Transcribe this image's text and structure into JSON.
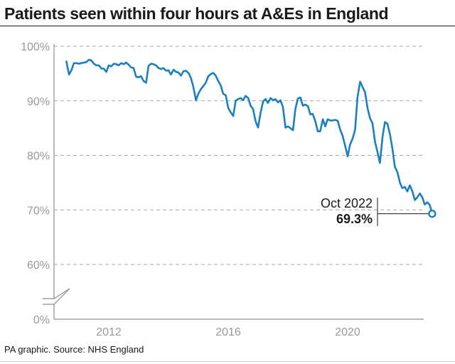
{
  "chart_data": {
    "type": "line",
    "title": "Patients seen within four hours at A&Es in England",
    "xlabel": "",
    "ylabel": "",
    "ylim": [
      60,
      100
    ],
    "y_ticks": [
      "100%",
      "90%",
      "80%",
      "70%",
      "60%",
      "0%"
    ],
    "y_tick_values": [
      100,
      90,
      80,
      70,
      60,
      0
    ],
    "y_axis_break": true,
    "x_ticks": [
      "2012",
      "2016",
      "2020"
    ],
    "x_tick_values": [
      2012,
      2016,
      2020
    ],
    "xlim": [
      2010.5,
      2022.9
    ],
    "grid": "horizontal dashed",
    "color": "#1b7fc0",
    "series": [
      {
        "values": [
          [
            2010.58,
            97.2
          ],
          [
            2010.67,
            94.8
          ],
          [
            2010.75,
            95.6
          ],
          [
            2010.83,
            96.9
          ],
          [
            2010.92,
            96.9
          ],
          [
            2011.0,
            96.8
          ],
          [
            2011.08,
            96.9
          ],
          [
            2011.17,
            97.0
          ],
          [
            2011.25,
            97.1
          ],
          [
            2011.33,
            97.5
          ],
          [
            2011.42,
            97.4
          ],
          [
            2011.5,
            96.8
          ],
          [
            2011.58,
            96.5
          ],
          [
            2011.67,
            96.5
          ],
          [
            2011.75,
            95.9
          ],
          [
            2011.83,
            95.9
          ],
          [
            2011.92,
            95.3
          ],
          [
            2012.0,
            96.5
          ],
          [
            2012.08,
            96.3
          ],
          [
            2012.17,
            96.8
          ],
          [
            2012.25,
            96.7
          ],
          [
            2012.33,
            96.5
          ],
          [
            2012.42,
            96.9
          ],
          [
            2012.5,
            96.7
          ],
          [
            2012.58,
            97.0
          ],
          [
            2012.67,
            96.6
          ],
          [
            2012.75,
            96.1
          ],
          [
            2012.83,
            96.0
          ],
          [
            2012.92,
            94.4
          ],
          [
            2013.0,
            94.3
          ],
          [
            2013.08,
            94.5
          ],
          [
            2013.17,
            93.6
          ],
          [
            2013.25,
            93.3
          ],
          [
            2013.33,
            96.4
          ],
          [
            2013.42,
            96.8
          ],
          [
            2013.5,
            96.7
          ],
          [
            2013.58,
            96.5
          ],
          [
            2013.67,
            96.0
          ],
          [
            2013.75,
            95.8
          ],
          [
            2013.83,
            96.0
          ],
          [
            2013.92,
            95.5
          ],
          [
            2014.0,
            95.6
          ],
          [
            2014.08,
            94.8
          ],
          [
            2014.17,
            95.7
          ],
          [
            2014.25,
            95.3
          ],
          [
            2014.33,
            95.2
          ],
          [
            2014.42,
            94.6
          ],
          [
            2014.5,
            95.4
          ],
          [
            2014.58,
            95.5
          ],
          [
            2014.67,
            95.1
          ],
          [
            2014.75,
            94.2
          ],
          [
            2014.83,
            92.6
          ],
          [
            2014.92,
            90.1
          ],
          [
            2015.0,
            91.3
          ],
          [
            2015.08,
            92.1
          ],
          [
            2015.17,
            92.7
          ],
          [
            2015.25,
            93.3
          ],
          [
            2015.33,
            94.5
          ],
          [
            2015.42,
            94.9
          ],
          [
            2015.5,
            95.1
          ],
          [
            2015.58,
            94.6
          ],
          [
            2015.67,
            93.6
          ],
          [
            2015.75,
            92.8
          ],
          [
            2015.83,
            91.3
          ],
          [
            2015.92,
            91.0
          ],
          [
            2016.0,
            88.7
          ],
          [
            2016.08,
            87.9
          ],
          [
            2016.17,
            87.2
          ],
          [
            2016.25,
            90.0
          ],
          [
            2016.33,
            90.3
          ],
          [
            2016.42,
            90.5
          ],
          [
            2016.5,
            90.1
          ],
          [
            2016.58,
            90.9
          ],
          [
            2016.67,
            90.5
          ],
          [
            2016.75,
            89.1
          ],
          [
            2016.83,
            88.5
          ],
          [
            2016.92,
            86.2
          ],
          [
            2017.0,
            85.1
          ],
          [
            2017.08,
            87.7
          ],
          [
            2017.17,
            89.9
          ],
          [
            2017.25,
            90.3
          ],
          [
            2017.33,
            89.6
          ],
          [
            2017.42,
            90.5
          ],
          [
            2017.5,
            90.1
          ],
          [
            2017.58,
            90.3
          ],
          [
            2017.67,
            89.7
          ],
          [
            2017.75,
            90.1
          ],
          [
            2017.83,
            88.9
          ],
          [
            2017.92,
            85.1
          ],
          [
            2018.0,
            85.3
          ],
          [
            2018.08,
            85.0
          ],
          [
            2018.17,
            84.6
          ],
          [
            2018.25,
            88.5
          ],
          [
            2018.33,
            90.4
          ],
          [
            2018.42,
            90.6
          ],
          [
            2018.5,
            89.1
          ],
          [
            2018.58,
            89.3
          ],
          [
            2018.67,
            89.0
          ],
          [
            2018.75,
            87.5
          ],
          [
            2018.83,
            87.6
          ],
          [
            2018.92,
            86.2
          ],
          [
            2019.0,
            84.4
          ],
          [
            2019.08,
            84.4
          ],
          [
            2019.17,
            86.6
          ],
          [
            2019.25,
            85.3
          ],
          [
            2019.33,
            86.6
          ],
          [
            2019.42,
            86.4
          ],
          [
            2019.5,
            86.4
          ],
          [
            2019.58,
            86.5
          ],
          [
            2019.67,
            86.3
          ],
          [
            2019.75,
            84.7
          ],
          [
            2019.83,
            83.6
          ],
          [
            2019.92,
            81.7
          ],
          [
            2020.0,
            79.8
          ],
          [
            2020.08,
            82.0
          ],
          [
            2020.17,
            83.1
          ],
          [
            2020.25,
            84.7
          ],
          [
            2020.33,
            90.7
          ],
          [
            2020.42,
            93.5
          ],
          [
            2020.5,
            92.5
          ],
          [
            2020.58,
            91.6
          ],
          [
            2020.67,
            88.6
          ],
          [
            2020.75,
            86.8
          ],
          [
            2020.83,
            85.9
          ],
          [
            2020.92,
            82.4
          ],
          [
            2021.0,
            80.6
          ],
          [
            2021.08,
            78.6
          ],
          [
            2021.17,
            83.4
          ],
          [
            2021.25,
            86.1
          ],
          [
            2021.33,
            85.8
          ],
          [
            2021.42,
            83.8
          ],
          [
            2021.5,
            81.2
          ],
          [
            2021.58,
            77.9
          ],
          [
            2021.67,
            76.9
          ],
          [
            2021.75,
            75.0
          ],
          [
            2021.83,
            74.0
          ],
          [
            2021.92,
            74.2
          ],
          [
            2022.0,
            73.4
          ],
          [
            2022.08,
            74.5
          ],
          [
            2022.17,
            73.4
          ],
          [
            2022.25,
            71.8
          ],
          [
            2022.33,
            72.3
          ],
          [
            2022.42,
            73.0
          ],
          [
            2022.5,
            72.3
          ],
          [
            2022.58,
            71.0
          ],
          [
            2022.67,
            71.4
          ],
          [
            2022.75,
            70.9
          ],
          [
            2022.83,
            69.3
          ]
        ]
      }
    ],
    "annotation": {
      "label": "Oct 2022",
      "value_label": "69.3%",
      "x": 2022.83,
      "y": 69.3
    },
    "source": "PA graphic. Source: NHS England"
  }
}
